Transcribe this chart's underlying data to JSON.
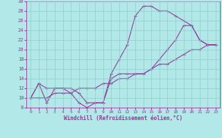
{
  "xlabel": "Windchill (Refroidissement éolien,°C)",
  "background_color": "#b2e8e8",
  "line_color": "#993399",
  "xlim": [
    -0.5,
    23.5
  ],
  "ylim": [
    8,
    30
  ],
  "xticks": [
    0,
    1,
    2,
    3,
    4,
    5,
    6,
    7,
    8,
    9,
    10,
    11,
    12,
    13,
    14,
    15,
    16,
    17,
    18,
    19,
    20,
    21,
    22,
    23
  ],
  "yticks": [
    8,
    10,
    12,
    14,
    16,
    18,
    20,
    22,
    24,
    26,
    28,
    30
  ],
  "grid_color": "#8fcccc",
  "curve1_x": [
    0,
    1,
    2,
    3,
    4,
    5,
    6,
    7,
    8,
    9,
    10,
    11,
    12,
    13,
    14,
    15,
    16,
    17,
    18,
    19,
    20,
    21,
    22,
    23
  ],
  "curve1_y": [
    10,
    13,
    9,
    12,
    12,
    11,
    9,
    8,
    9,
    9,
    15,
    18,
    21,
    27,
    29,
    29,
    28,
    28,
    27,
    26,
    25,
    22,
    21,
    21
  ],
  "curve2_x": [
    0,
    1,
    2,
    3,
    4,
    5,
    6,
    7,
    8,
    9,
    10,
    11,
    12,
    13,
    14,
    15,
    16,
    17,
    18,
    19,
    20,
    21,
    22,
    23
  ],
  "curve2_y": [
    10,
    10,
    10,
    11,
    11,
    11,
    12,
    12,
    12,
    13,
    13,
    14,
    14,
    15,
    15,
    16,
    17,
    17,
    18,
    19,
    20,
    20,
    21,
    21
  ],
  "curve3_x": [
    0,
    1,
    2,
    3,
    4,
    5,
    6,
    7,
    8,
    9,
    10,
    11,
    12,
    13,
    14,
    15,
    16,
    17,
    18,
    19,
    20,
    21,
    22,
    23
  ],
  "curve3_y": [
    10,
    13,
    12,
    12,
    12,
    12,
    11,
    9,
    9,
    9,
    14,
    15,
    15,
    15,
    15,
    16,
    18,
    20,
    22,
    25,
    25,
    22,
    21,
    21
  ]
}
